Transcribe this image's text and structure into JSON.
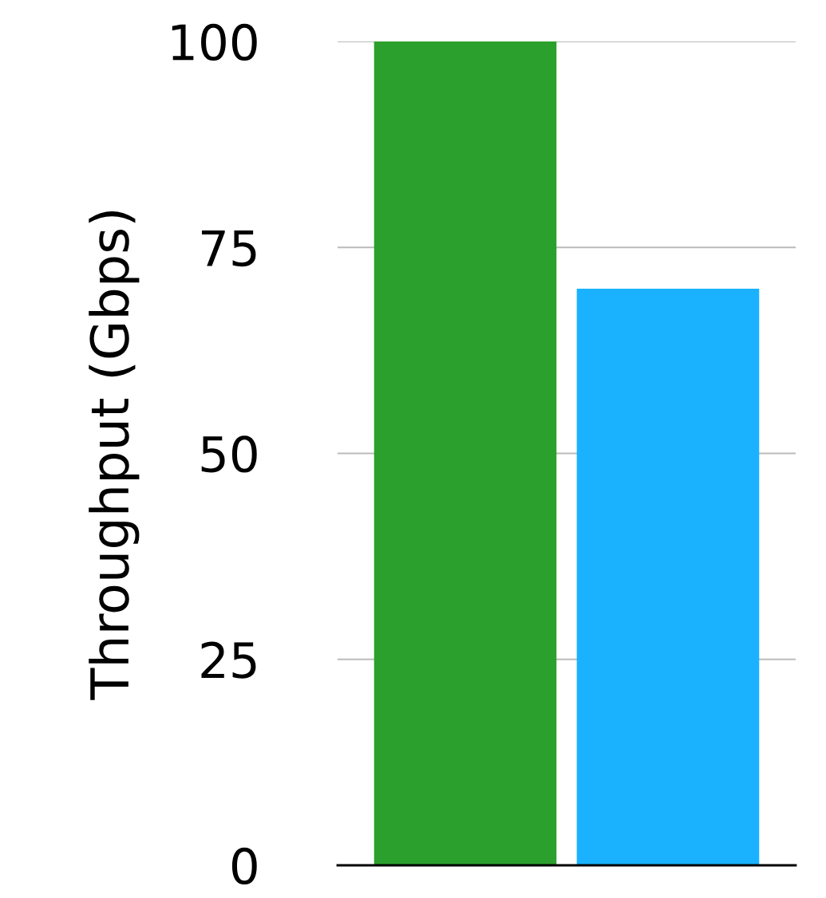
{
  "chart_data": {
    "type": "bar",
    "ylabel": "Throughput (Gbps)",
    "categories": [
      null,
      null
    ],
    "values": [
      100,
      70
    ],
    "colors": [
      "#2ca02c",
      "#1ab2ff"
    ],
    "ylim": [
      0,
      100
    ],
    "yticks": [
      0,
      25,
      50,
      75,
      100
    ],
    "grid": "y",
    "tick_labels": "y"
  }
}
